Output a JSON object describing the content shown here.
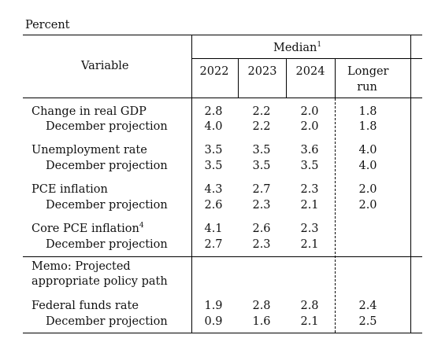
{
  "caption": "Percent",
  "header": {
    "variable": "Variable",
    "median": "Median",
    "median_note": "1",
    "years": [
      "2022",
      "2023",
      "2024"
    ],
    "longer_run_line1": "Longer",
    "longer_run_line2": "run"
  },
  "rows": [
    {
      "label": "Change in real GDP",
      "note": "",
      "values": [
        "2.8",
        "2.2",
        "2.0",
        "1.8"
      ]
    },
    {
      "label": "December projection",
      "note": "",
      "values": [
        "4.0",
        "2.2",
        "2.0",
        "1.8"
      ]
    },
    {
      "label": "Unemployment rate",
      "note": "",
      "values": [
        "3.5",
        "3.5",
        "3.6",
        "4.0"
      ]
    },
    {
      "label": "December projection",
      "note": "",
      "values": [
        "3.5",
        "3.5",
        "3.5",
        "4.0"
      ]
    },
    {
      "label": "PCE inflation",
      "note": "",
      "values": [
        "4.3",
        "2.7",
        "2.3",
        "2.0"
      ]
    },
    {
      "label": "December projection",
      "note": "",
      "values": [
        "2.6",
        "2.3",
        "2.1",
        "2.0"
      ]
    },
    {
      "label": "Core PCE inflation",
      "note": "4",
      "values": [
        "4.1",
        "2.6",
        "2.3",
        ""
      ]
    },
    {
      "label": "December projection",
      "note": "",
      "values": [
        "2.7",
        "2.3",
        "2.1",
        ""
      ]
    },
    {
      "label": "Federal funds rate",
      "note": "",
      "values": [
        "1.9",
        "2.8",
        "2.8",
        "2.4"
      ]
    },
    {
      "label": "December projection",
      "note": "",
      "values": [
        "0.9",
        "1.6",
        "2.1",
        "2.5"
      ]
    }
  ],
  "memo": {
    "line1": "Memo: Projected",
    "line2": "appropriate policy path"
  }
}
